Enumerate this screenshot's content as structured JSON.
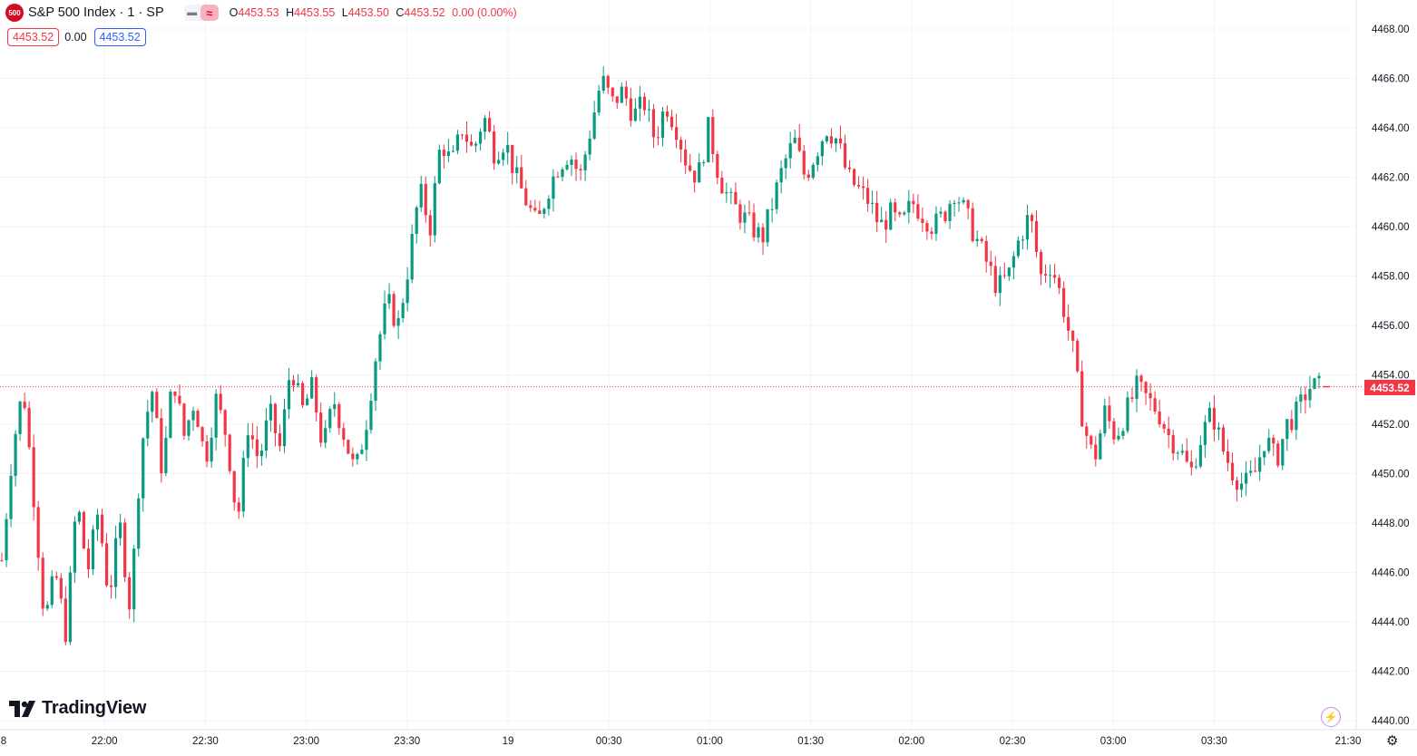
{
  "header": {
    "logo_text": "500",
    "symbol": "S&P 500 Index · 1 · SP",
    "pill_icon1": "bars-icon",
    "pill_icon2": "≈",
    "open_label": "O",
    "open": "4453.53",
    "high_label": "H",
    "high": "4453.55",
    "low_label": "L",
    "low": "4453.50",
    "close_label": "C",
    "close": "4453.52",
    "change": "0.00 (0.00%)"
  },
  "legend_row": {
    "bid": "4453.52",
    "spread": "0.00",
    "ask": "4453.52"
  },
  "branding": {
    "name": "TradingView"
  },
  "last_price_label": "4453.52",
  "colors": {
    "up": "#089981",
    "down": "#f23645",
    "last_line": "#f23645",
    "grid": "#f0f3fa"
  },
  "chart_data": {
    "type": "candlestick",
    "title": "S&P 500 Index · 1 · SP",
    "ylim": [
      4440,
      4468
    ],
    "y_ticks": [
      4440,
      4442,
      4444,
      4446,
      4448,
      4450,
      4452,
      4454,
      4456,
      4458,
      4460,
      4462,
      4464,
      4466,
      4468
    ],
    "y_tick_labels": [
      "4440.00",
      "4442.00",
      "4444.00",
      "4446.00",
      "4448.00",
      "4450.00",
      "4452.00",
      "4454.00",
      "4456.00",
      "4458.00",
      "4460.00",
      "4462.00",
      "4464.00",
      "4466.00",
      "4468.00"
    ],
    "x_tick_labels": [
      "8",
      "22:00",
      "22:30",
      "23:00",
      "23:30",
      "19",
      "00:30",
      "01:00",
      "01:30",
      "02:00",
      "02:30",
      "03:00",
      "03:30",
      "21:30"
    ],
    "last_price": 4453.52,
    "grid": true,
    "close_path": [
      4446.5,
      4451.0,
      4453.5,
      4449.0,
      4444.0,
      4446.0,
      4443.5,
      4449.0,
      4446.0,
      4448.5,
      4445.0,
      4448.0,
      4444.5,
      4451.0,
      4453.5,
      4450.0,
      4454.0,
      4451.5,
      4453.0,
      4450.5,
      4453.0,
      4451.5,
      4448.0,
      4452.0,
      4450.5,
      4452.5,
      4451.0,
      4454.5,
      4452.5,
      4453.5,
      4451.0,
      4453.0,
      4451.5,
      4450.0,
      4452.0,
      4455.0,
      4457.0,
      4456.0,
      4458.5,
      4461.5,
      4460.0,
      4463.5,
      4462.5,
      4464.0,
      4463.0,
      4464.5,
      4463.0,
      4463.5,
      4462.0,
      4461.0,
      4460.0,
      4461.5,
      4462.5,
      4463.0,
      4462.0,
      4464.0,
      4466.0,
      4465.0,
      4465.5,
      4464.5,
      4465.0,
      4463.5,
      4465.0,
      4464.0,
      4462.5,
      4462.0,
      4464.0,
      4462.0,
      4461.0,
      4460.5,
      4460.0,
      4459.5,
      4461.0,
      4462.5,
      4463.5,
      4462.0,
      4463.0,
      4464.0,
      4463.5,
      4462.0,
      4461.5,
      4461.0,
      4460.0,
      4460.5,
      4460.0,
      4461.0,
      4460.5,
      4460.0,
      4460.5,
      4461.5,
      4460.5,
      4459.5,
      4458.5,
      4457.5,
      4458.0,
      4459.5,
      4460.5,
      4458.0,
      4458.5,
      4457.0,
      4455.0,
      4452.0,
      4450.5,
      4452.5,
      4451.5,
      4452.5,
      4453.5,
      4453.0,
      4452.5,
      4451.5,
      4451.0,
      4450.0,
      4451.5,
      4452.5,
      4451.0,
      4450.0,
      4449.5,
      4450.0,
      4451.5,
      4450.5,
      4452.0,
      4452.5,
      4453.5,
      4453.52
    ]
  }
}
